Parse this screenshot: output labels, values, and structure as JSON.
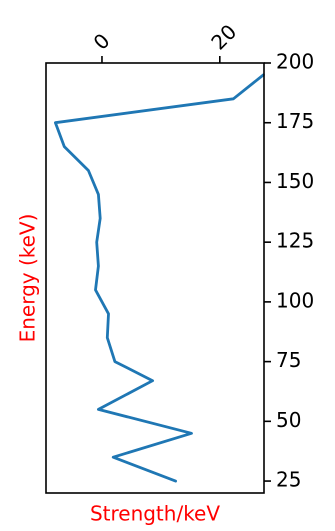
{
  "chart_data": {
    "type": "line",
    "title": "",
    "xlabel": "Strength/keV",
    "ylabel": "Energy (keV)",
    "label_color": "#ff0000",
    "line_color": "#1f77b4",
    "grid": false,
    "xlim": [
      -9.5,
      27.5
    ],
    "ylim": [
      20,
      200
    ],
    "x_ticks": [
      0,
      20
    ],
    "x_tick_labels": [
      "0",
      "20"
    ],
    "x_tick_position": "top",
    "y_ticks": [
      25,
      50,
      75,
      100,
      125,
      150,
      175,
      200
    ],
    "y_tick_labels": [
      "25",
      "50",
      "75",
      "100",
      "125",
      "150",
      "175",
      "200"
    ],
    "y_tick_position": "right",
    "series": [
      {
        "x": [
          12.5,
          1.9,
          15.2,
          -0.6,
          8.6,
          2.2,
          0.9,
          1.1,
          -1.1,
          -0.6,
          -0.9,
          -0.3,
          -0.6,
          -2.3,
          -6.4,
          -7.9,
          22.3,
          27.4
        ],
        "y": [
          25,
          35,
          45,
          55,
          67,
          75,
          85,
          95,
          105,
          115,
          125,
          135,
          145,
          155,
          165,
          175,
          185,
          195
        ]
      }
    ]
  }
}
